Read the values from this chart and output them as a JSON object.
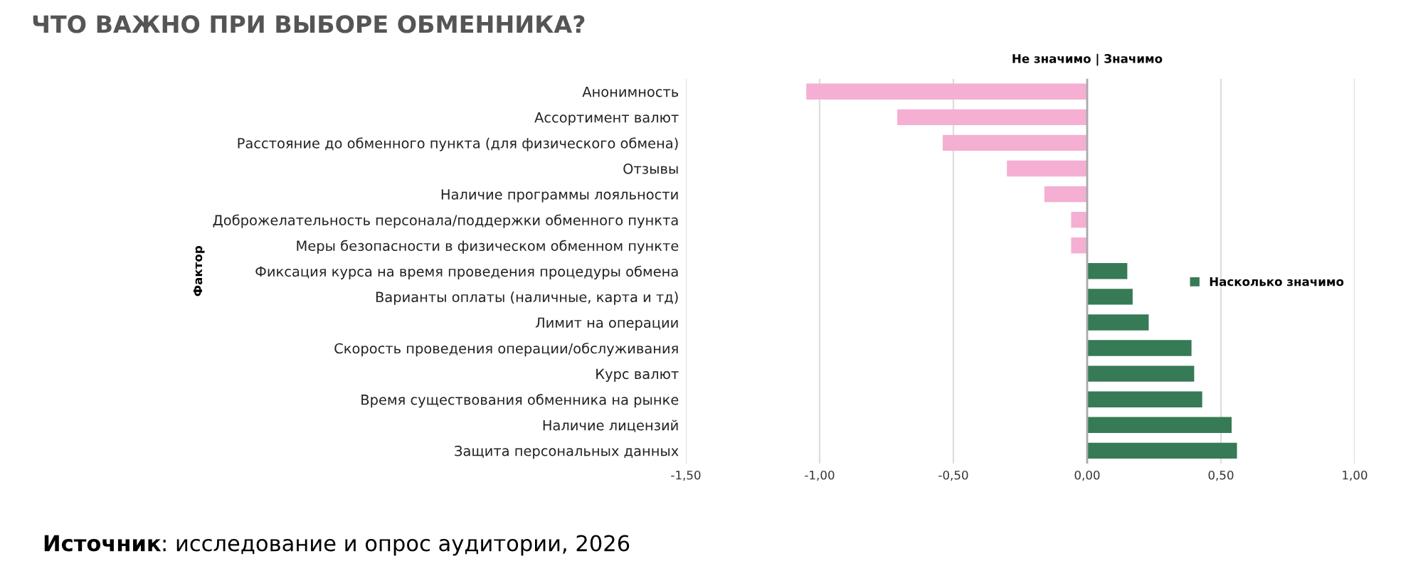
{
  "chart_data": {
    "type": "bar",
    "orientation": "horizontal",
    "title": "ЧТО ВАЖНО ПРИ ВЫБОРЕ ОБМЕННИКА?",
    "subtitle": "Не значимо | Значимо",
    "ylabel": "Фактор",
    "annotations": [
      "Источник: исследование и опрос аудитории, 2026"
    ],
    "categories": [
      "Анонимность",
      "Ассортимент валют",
      "Расстояние до обменного пункта (для физического обмена)",
      "Отзывы",
      "Наличие программы лояльности",
      "Доброжелательность персонала/поддержки обменного пункта",
      "Меры безопасности в физическом обменном пункте",
      "Фиксация курса на время проведения процедуры обмена",
      "Варианты оплаты (наличные, карта и тд)",
      "Лимит на операции",
      "Скорость проведения операции/обслуживания",
      "Курс валют",
      "Время существования обменника на рынке",
      "Наличие лицензий",
      "Защита персональных данных"
    ],
    "series": [
      {
        "name": "Насколько значимо",
        "color": "#367a56",
        "values": [
          -1.05,
          -0.71,
          -0.54,
          -0.3,
          -0.16,
          -0.06,
          -0.06,
          0.15,
          0.17,
          0.23,
          0.39,
          0.4,
          0.43,
          0.54,
          0.56
        ],
        "colors": [
          "#f4afd2",
          "#f4afd2",
          "#f4afd2",
          "#f4afd2",
          "#f4afd2",
          "#f4afd2",
          "#f4afd2",
          "#367a56",
          "#367a56",
          "#367a56",
          "#367a56",
          "#367a56",
          "#367a56",
          "#367a56",
          "#367a56"
        ]
      }
    ],
    "xlim": [
      -1.5,
      1.0
    ],
    "xticks": [
      {
        "value": -1.5,
        "label": "-1,50"
      },
      {
        "value": -1.0,
        "label": "-1,00"
      },
      {
        "value": -0.5,
        "label": "-0,50"
      },
      {
        "value": 0,
        "label": "0,00"
      },
      {
        "value": 0.5,
        "label": "0,50"
      },
      {
        "value": 1.0,
        "label": "1,00"
      }
    ],
    "grid": "x",
    "legend": "right"
  }
}
